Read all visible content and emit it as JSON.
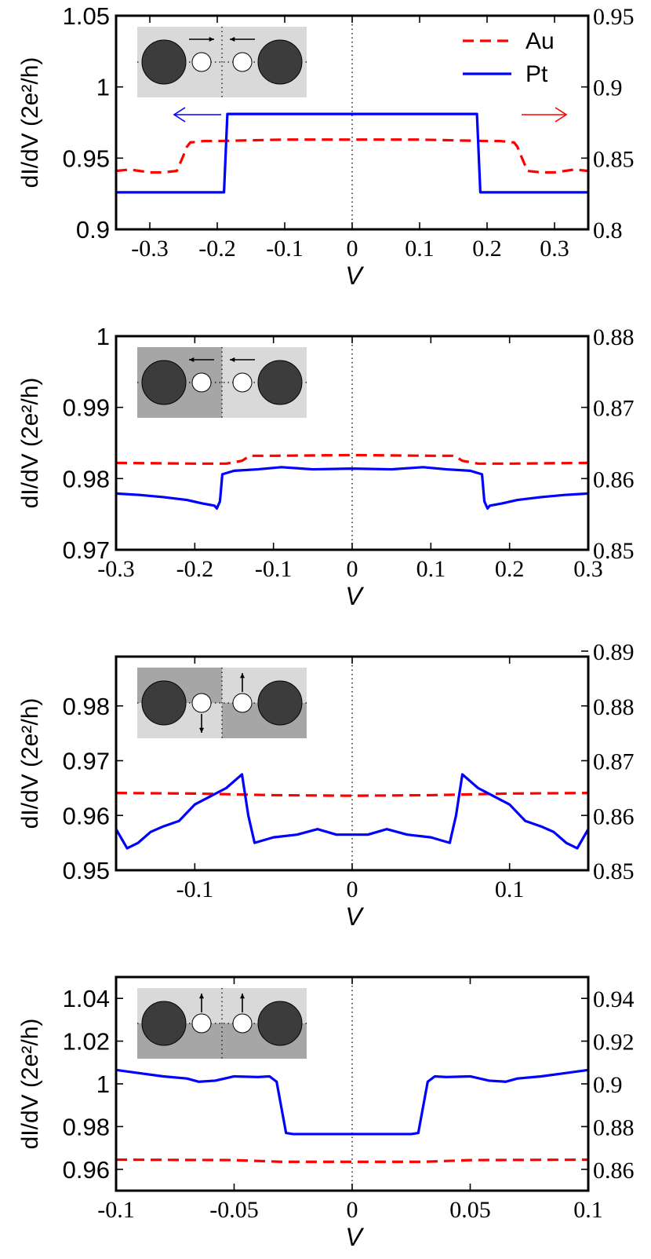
{
  "chart_data": [
    {
      "type": "line",
      "xlabel": "V",
      "ylabel": "dI/dV (2e²/h)",
      "xlim": [
        -0.35,
        0.35
      ],
      "ylim_left": [
        0.9,
        1.05
      ],
      "ylim_right": [
        0.8,
        0.95
      ],
      "x_ticks": [
        "-0.3",
        "-0.2",
        "-0.1",
        "0",
        "0.1",
        "0.2",
        "0.3"
      ],
      "y_ticks_left": [
        "0.9",
        "0.95",
        "1",
        "1.05"
      ],
      "y_ticks_right": [
        "0.8",
        "0.85",
        "0.9",
        "0.95"
      ],
      "legend": {
        "placement": "top-right",
        "entries": [
          "Au",
          "Pt"
        ]
      },
      "inset": "parallel-inward",
      "series": [
        {
          "name": "Au",
          "axis": "right",
          "color": "#ff0000",
          "style": "dashed",
          "x": [
            -0.35,
            -0.33,
            -0.3,
            -0.28,
            -0.26,
            -0.25,
            -0.245,
            -0.24,
            -0.22,
            -0.2,
            -0.1,
            0,
            0.1,
            0.2,
            0.22,
            0.24,
            0.245,
            0.25,
            0.26,
            0.28,
            0.3,
            0.33,
            0.35
          ],
          "y": [
            0.841,
            0.842,
            0.84,
            0.84,
            0.841,
            0.852,
            0.858,
            0.861,
            0.862,
            0.862,
            0.863,
            0.863,
            0.863,
            0.862,
            0.862,
            0.861,
            0.858,
            0.852,
            0.841,
            0.84,
            0.84,
            0.842,
            0.841
          ]
        },
        {
          "name": "Pt",
          "axis": "left",
          "color": "#0000ff",
          "style": "solid",
          "x": [
            -0.35,
            -0.19,
            -0.185,
            0.185,
            0.19,
            0.35
          ],
          "y": [
            0.926,
            0.926,
            0.981,
            0.981,
            0.926,
            0.926
          ]
        }
      ],
      "annotations": [
        {
          "type": "arrow",
          "direction": "left",
          "color": "#0000ff",
          "meaning": "Pt uses left axis"
        },
        {
          "type": "arrow",
          "direction": "right",
          "color": "#ff0000",
          "meaning": "Au uses right axis"
        }
      ]
    },
    {
      "type": "line",
      "xlabel": "V",
      "ylabel": "dI/dV (2e²/h)",
      "xlim": [
        -0.3,
        0.3
      ],
      "ylim_left": [
        0.97,
        1.0
      ],
      "ylim_right": [
        0.85,
        0.88
      ],
      "x_ticks": [
        "-0.3",
        "-0.2",
        "-0.1",
        "0",
        "0.1",
        "0.2",
        "0.3"
      ],
      "y_ticks_left": [
        "0.97",
        "0.98",
        "0.99",
        "1"
      ],
      "y_ticks_right": [
        "0.85",
        "0.86",
        "0.87",
        "0.88"
      ],
      "inset": "parallel-leftward",
      "series": [
        {
          "name": "Au",
          "axis": "right",
          "color": "#ff0000",
          "style": "dashed",
          "x": [
            -0.3,
            -0.2,
            -0.16,
            -0.14,
            -0.13,
            -0.1,
            0,
            0.1,
            0.13,
            0.14,
            0.16,
            0.2,
            0.3
          ],
          "y": [
            0.8622,
            0.8621,
            0.8621,
            0.8625,
            0.8632,
            0.8632,
            0.8633,
            0.8632,
            0.8632,
            0.8625,
            0.8621,
            0.8621,
            0.8622
          ]
        },
        {
          "name": "Pt",
          "axis": "left",
          "color": "#0000ff",
          "style": "solid",
          "x": [
            -0.3,
            -0.27,
            -0.24,
            -0.21,
            -0.19,
            -0.175,
            -0.172,
            -0.168,
            -0.165,
            -0.15,
            -0.12,
            -0.09,
            -0.05,
            0,
            0.05,
            0.09,
            0.12,
            0.15,
            0.165,
            0.168,
            0.172,
            0.175,
            0.19,
            0.21,
            0.24,
            0.27,
            0.3
          ],
          "y": [
            0.9779,
            0.9777,
            0.9774,
            0.977,
            0.9765,
            0.9762,
            0.9758,
            0.9768,
            0.9806,
            0.9811,
            0.9813,
            0.9816,
            0.9813,
            0.9814,
            0.9813,
            0.9816,
            0.9813,
            0.9811,
            0.9806,
            0.9768,
            0.9758,
            0.9762,
            0.9765,
            0.977,
            0.9774,
            0.9777,
            0.9779
          ]
        }
      ]
    },
    {
      "type": "line",
      "xlabel": "V",
      "ylabel": "dI/dV  (2e²/h)",
      "xlim": [
        -0.15,
        0.15
      ],
      "ylim_left": [
        0.95,
        0.989
      ],
      "ylim_right": [
        0.85,
        0.889
      ],
      "x_ticks": [
        "-0.1",
        "0",
        "0.1"
      ],
      "y_ticks_left": [
        "0.95",
        "0.96",
        "0.97",
        "0.98"
      ],
      "y_ticks_right": [
        "0.85",
        "0.86",
        "0.87",
        "0.88",
        "0.89"
      ],
      "inset": "antiparallel-vertical",
      "series": [
        {
          "name": "Au",
          "axis": "right",
          "color": "#ff0000",
          "style": "dashed",
          "x": [
            -0.15,
            -0.1,
            -0.05,
            0,
            0.05,
            0.1,
            0.15
          ],
          "y": [
            0.8641,
            0.864,
            0.8637,
            0.8636,
            0.8637,
            0.864,
            0.8641
          ]
        },
        {
          "name": "Pt",
          "axis": "left",
          "color": "#0000ff",
          "style": "solid",
          "x": [
            -0.15,
            -0.143,
            -0.136,
            -0.128,
            -0.12,
            -0.11,
            -0.1,
            -0.09,
            -0.08,
            -0.072,
            -0.07,
            -0.066,
            -0.062,
            -0.05,
            -0.035,
            -0.022,
            -0.01,
            0,
            0.01,
            0.022,
            0.035,
            0.05,
            0.062,
            0.066,
            0.07,
            0.072,
            0.08,
            0.09,
            0.1,
            0.11,
            0.12,
            0.128,
            0.136,
            0.143,
            0.15
          ],
          "y": [
            0.9575,
            0.954,
            0.955,
            0.957,
            0.958,
            0.959,
            0.962,
            0.9635,
            0.965,
            0.967,
            0.9675,
            0.96,
            0.955,
            0.956,
            0.9565,
            0.9575,
            0.9565,
            0.9565,
            0.9565,
            0.9575,
            0.9565,
            0.956,
            0.955,
            0.96,
            0.9675,
            0.967,
            0.965,
            0.9635,
            0.962,
            0.959,
            0.958,
            0.957,
            0.955,
            0.954,
            0.9575
          ]
        }
      ]
    },
    {
      "type": "line",
      "xlabel": "V",
      "ylabel": "dI/dV (2e²/h)",
      "xlim": [
        -0.1,
        0.1
      ],
      "ylim_left": [
        0.95,
        1.05
      ],
      "ylim_right": [
        0.85,
        0.95
      ],
      "x_ticks": [
        "-0.1",
        "-0.05",
        "0",
        "0.05",
        "0.1"
      ],
      "y_ticks_left": [
        "0.96",
        "0.98",
        "1",
        "1.02",
        "1.04"
      ],
      "y_ticks_right": [
        "0.86",
        "0.88",
        "0.9",
        "0.92",
        "0.94"
      ],
      "inset": "parallel-up",
      "series": [
        {
          "name": "Au",
          "axis": "right",
          "color": "#ff0000",
          "style": "dashed",
          "x": [
            -0.1,
            -0.05,
            -0.03,
            0,
            0.03,
            0.05,
            0.1
          ],
          "y": [
            0.8645,
            0.8643,
            0.8635,
            0.8635,
            0.8635,
            0.8643,
            0.8645
          ]
        },
        {
          "name": "Pt",
          "axis": "left",
          "color": "#0000ff",
          "style": "solid",
          "x": [
            -0.1,
            -0.09,
            -0.08,
            -0.07,
            -0.065,
            -0.058,
            -0.05,
            -0.04,
            -0.035,
            -0.032,
            -0.028,
            -0.025,
            -0.01,
            0,
            0.01,
            0.025,
            0.028,
            0.032,
            0.035,
            0.04,
            0.05,
            0.058,
            0.065,
            0.07,
            0.08,
            0.09,
            0.1
          ],
          "y": [
            1.0065,
            1.005,
            1.0035,
            1.0025,
            1.001,
            1.0015,
            1.0035,
            1.0032,
            1.0035,
            1.001,
            0.977,
            0.9765,
            0.9765,
            0.9765,
            0.9765,
            0.9765,
            0.977,
            1.001,
            1.0035,
            1.0032,
            1.0035,
            1.0015,
            1.001,
            1.0025,
            1.0035,
            1.005,
            1.0065
          ]
        }
      ]
    }
  ]
}
